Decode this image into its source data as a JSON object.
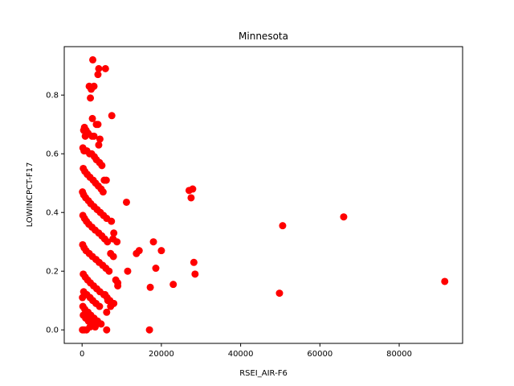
{
  "chart_data": {
    "type": "scatter",
    "title": "Minnesota",
    "xlabel": "RSEI_AIR-F6",
    "ylabel": "LOWINCPCT-F17",
    "xlim": [
      -4500,
      96000
    ],
    "ylim": [
      -0.046,
      0.965
    ],
    "xticks": [
      0,
      20000,
      40000,
      60000,
      80000
    ],
    "yticks": [
      0.0,
      0.2,
      0.4,
      0.6,
      0.8
    ],
    "ytick_labels": [
      "0.0",
      "0.2",
      "0.4",
      "0.6",
      "0.8"
    ],
    "grid": false,
    "marker_color": "#ff0000",
    "series": [
      {
        "x": [
          2700,
          4200,
          5900,
          4000,
          1800,
          3000,
          2300,
          2100,
          7500,
          2600,
          3600,
          4000,
          600,
          400,
          1000,
          1500,
          800,
          2500,
          3000,
          4500,
          4200,
          200,
          500,
          1200,
          1900,
          2400,
          3100,
          3600,
          4400,
          5000,
          5600,
          6100,
          300,
          700,
          1300,
          2000,
          2800,
          3400,
          4100,
          4800,
          5300,
          11200,
          27000,
          27900,
          27500,
          100,
          400,
          900,
          1600,
          2200,
          3000,
          3800,
          4600,
          5400,
          6200,
          7400,
          8000,
          7800,
          8800,
          200,
          600,
          1100,
          1700,
          2500,
          3300,
          4200,
          5000,
          5700,
          6400,
          18000,
          14400,
          13700,
          20000,
          18600,
          11500,
          28200,
          28500,
          23000,
          17200,
          50600,
          66000,
          49800,
          91500,
          150,
          500,
          1000,
          1800,
          2600,
          3500,
          4300,
          5200,
          6000,
          6800,
          7200,
          7900,
          8500,
          9000,
          300,
          800,
          1400,
          2100,
          2900,
          3700,
          4500,
          5500,
          6300,
          7000,
          7600,
          9000,
          100,
          400,
          1200,
          2000,
          2700,
          3500,
          4400,
          5800,
          6500,
          7200,
          8000,
          200,
          700,
          1500,
          2200,
          3000,
          3900,
          4800,
          6200,
          300,
          900,
          1600,
          2400,
          3300,
          17000,
          6200,
          100,
          500,
          1100,
          2000,
          2900,
          3800
        ],
        "y": [
          0.92,
          0.89,
          0.89,
          0.87,
          0.83,
          0.83,
          0.82,
          0.79,
          0.73,
          0.72,
          0.7,
          0.7,
          0.69,
          0.68,
          0.68,
          0.67,
          0.66,
          0.66,
          0.66,
          0.65,
          0.63,
          0.62,
          0.61,
          0.61,
          0.6,
          0.6,
          0.59,
          0.58,
          0.57,
          0.56,
          0.51,
          0.51,
          0.55,
          0.54,
          0.53,
          0.52,
          0.51,
          0.5,
          0.49,
          0.48,
          0.47,
          0.435,
          0.475,
          0.48,
          0.45,
          0.47,
          0.46,
          0.45,
          0.44,
          0.43,
          0.42,
          0.41,
          0.4,
          0.39,
          0.38,
          0.37,
          0.33,
          0.31,
          0.3,
          0.39,
          0.38,
          0.37,
          0.36,
          0.35,
          0.34,
          0.33,
          0.32,
          0.31,
          0.3,
          0.3,
          0.27,
          0.26,
          0.27,
          0.21,
          0.2,
          0.23,
          0.19,
          0.155,
          0.145,
          0.355,
          0.385,
          0.125,
          0.165,
          0.29,
          0.28,
          0.27,
          0.26,
          0.25,
          0.24,
          0.23,
          0.22,
          0.21,
          0.2,
          0.26,
          0.25,
          0.17,
          0.16,
          0.19,
          0.18,
          0.17,
          0.16,
          0.15,
          0.14,
          0.13,
          0.12,
          0.11,
          0.1,
          0.09,
          0.15,
          0.11,
          0.13,
          0.12,
          0.11,
          0.1,
          0.09,
          0.08,
          0.12,
          0.1,
          0.08,
          0.09,
          0.08,
          0.07,
          0.06,
          0.05,
          0.04,
          0.03,
          0.02,
          0.06,
          0.05,
          0.04,
          0.03,
          0.02,
          0.01,
          0.0,
          0.0,
          0.0,
          0.0,
          0.0,
          0.01,
          0.02,
          0.03
        ]
      }
    ]
  }
}
